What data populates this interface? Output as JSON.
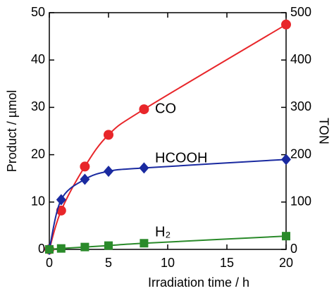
{
  "chart_data": {
    "type": "scatter",
    "x_label": "Irradiation time / h",
    "y_label": "Product / µmol",
    "y2_label": "TON",
    "xlim": [
      0,
      20
    ],
    "xticks": [
      0,
      5,
      10,
      15,
      20
    ],
    "ylim": [
      0,
      50
    ],
    "yticks": [
      0,
      10,
      20,
      30,
      40,
      50
    ],
    "y2lim": [
      0,
      500
    ],
    "y2ticks": [
      0,
      100,
      200,
      300,
      400,
      500
    ],
    "series": [
      {
        "name": "CO",
        "color": "#e8262a",
        "marker": "circle",
        "x": [
          0,
          1,
          3,
          5,
          8,
          20
        ],
        "values": [
          0,
          8.2,
          17.5,
          24.2,
          29.6,
          47.5
        ]
      },
      {
        "name": "HCOOH",
        "color": "#1a2aa0",
        "marker": "diamond",
        "x": [
          0,
          1,
          3,
          5,
          8,
          20
        ],
        "values": [
          0,
          10.5,
          14.8,
          16.5,
          17.2,
          19
        ]
      },
      {
        "name": "H₂",
        "color": "#2a8a2a",
        "marker": "square",
        "x": [
          0,
          1,
          3,
          5,
          8,
          20
        ],
        "values": [
          0,
          0.2,
          0.5,
          0.8,
          1.3,
          2.8
        ]
      }
    ]
  }
}
